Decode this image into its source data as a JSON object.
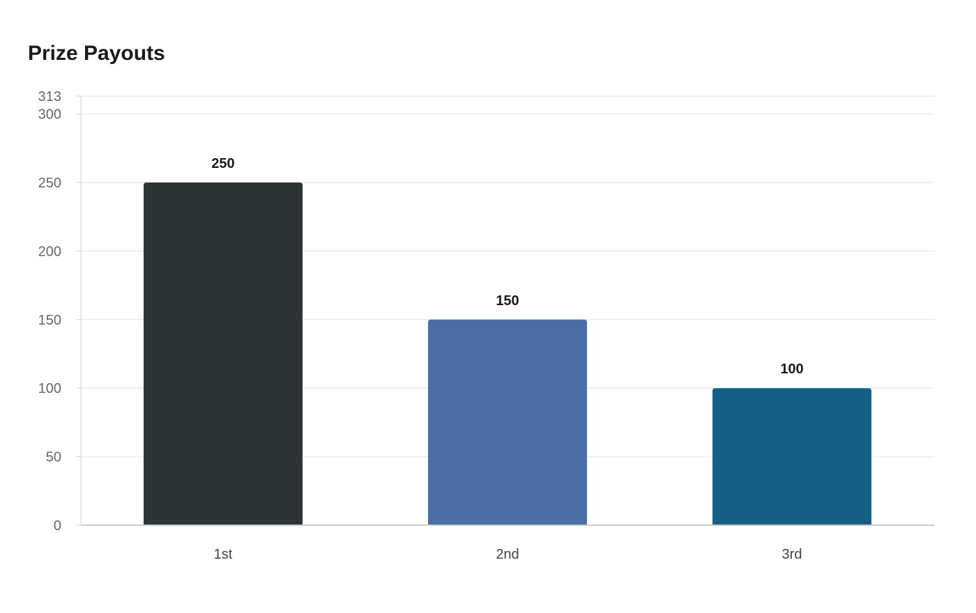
{
  "chart_data": {
    "type": "bar",
    "title": "Prize Payouts",
    "xlabel": "",
    "ylabel": "",
    "categories": [
      "1st",
      "2nd",
      "3rd"
    ],
    "values": [
      250,
      150,
      100
    ],
    "colors": [
      "#2d3436",
      "#4a6fa5",
      "#166088"
    ],
    "ylim": [
      0,
      313
    ],
    "yticks": [
      0,
      50,
      100,
      150,
      200,
      250,
      300,
      313
    ],
    "grid": true,
    "legend": "none",
    "data_labels": true
  }
}
